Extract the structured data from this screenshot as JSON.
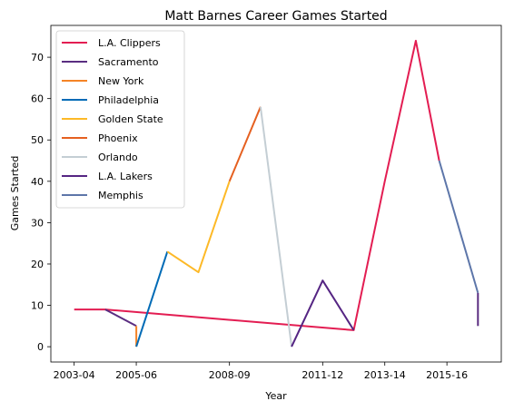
{
  "chart_data": {
    "type": "line",
    "title": "Matt Barnes Career Games Started",
    "xlabel": "Year",
    "ylabel": "Games Started",
    "x_ticks": [
      "2003-04",
      "2005-06",
      "2008-09",
      "2011-12",
      "2013-14",
      "2015-16"
    ],
    "x_tick_positions": [
      0,
      2,
      5,
      8,
      10,
      12
    ],
    "xlim": [
      -0.75,
      13.75
    ],
    "ylim": [
      -3.7,
      77.7
    ],
    "y_ticks": [
      0,
      10,
      20,
      30,
      40,
      50,
      60,
      70
    ],
    "grid": false,
    "legend_position": "upper-left",
    "series": [
      {
        "name": "L.A. Clippers",
        "color": "#E31D52",
        "points": [
          [
            0,
            9
          ],
          [
            1,
            9
          ],
          [
            9,
            4
          ],
          [
            10,
            40
          ],
          [
            11,
            74
          ],
          [
            11.75,
            45
          ]
        ]
      },
      {
        "name": "Sacramento",
        "color": "#5A2D81",
        "points": [
          [
            1,
            9
          ],
          [
            2,
            5
          ]
        ]
      },
      {
        "name": "New York",
        "color": "#F58426",
        "points": [
          [
            2,
            5
          ],
          [
            2,
            0
          ]
        ]
      },
      {
        "name": "Philadelphia",
        "color": "#006BB6",
        "points": [
          [
            2,
            0
          ],
          [
            3,
            23
          ]
        ]
      },
      {
        "name": "Golden State",
        "color": "#FDB927",
        "points": [
          [
            3,
            23
          ],
          [
            4,
            18
          ],
          [
            5,
            40
          ]
        ]
      },
      {
        "name": "Phoenix",
        "color": "#E56020",
        "points": [
          [
            5,
            40
          ],
          [
            6,
            58
          ]
        ]
      },
      {
        "name": "Orlando",
        "color": "#C4CED4",
        "points": [
          [
            6,
            58
          ],
          [
            7,
            0
          ]
        ]
      },
      {
        "name": "L.A. Lakers",
        "color": "#552583",
        "points": [
          [
            7,
            0
          ],
          [
            8,
            16
          ],
          [
            9,
            4
          ]
        ]
      },
      {
        "name": "Memphis",
        "color": "#5D76A9",
        "points": [
          [
            11.75,
            45
          ],
          [
            13,
            13
          ]
        ]
      },
      {
        "name": "",
        "color": "#5A2D81",
        "points": [
          [
            13,
            13
          ],
          [
            13,
            5
          ]
        ]
      }
    ]
  }
}
